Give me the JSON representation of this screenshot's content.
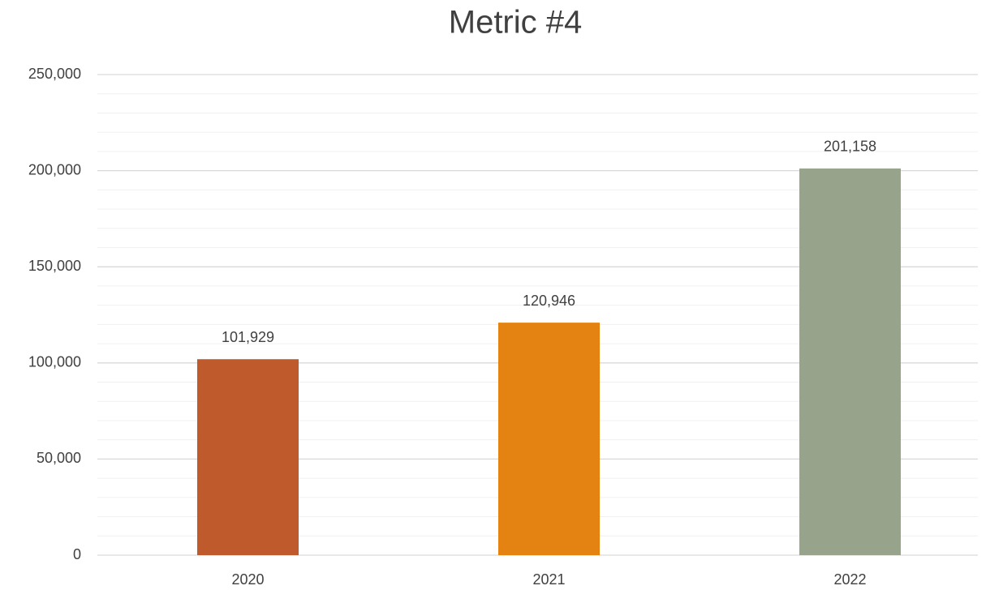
{
  "chart_data": {
    "type": "bar",
    "title": "Metric #4",
    "categories": [
      "2020",
      "2021",
      "2022"
    ],
    "values": [
      101929,
      120946,
      201158
    ],
    "value_labels": [
      "101,929",
      "120,946",
      "201,158"
    ],
    "colors": [
      "#be5a2c",
      "#e48312",
      "#97a38a"
    ],
    "ylim": [
      0,
      250000
    ],
    "yticks": [
      0,
      {
        "value": 50000,
        "label": "50,000"
      },
      {
        "value": 100000,
        "label": "100,000"
      },
      {
        "value": 150000,
        "label": "150,000"
      },
      {
        "value": 200000,
        "label": "200,000"
      },
      {
        "value": 250000,
        "label": "250,000"
      }
    ],
    "grid": true,
    "minor_grid": true
  }
}
